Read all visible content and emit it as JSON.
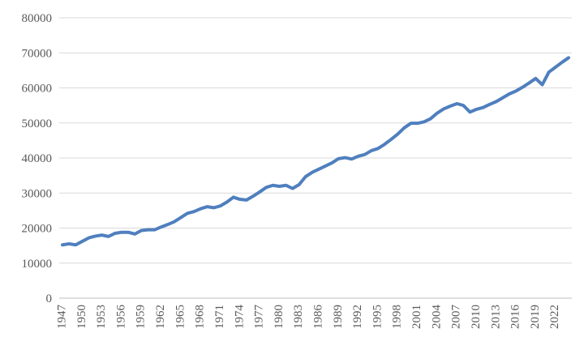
{
  "chart_data": {
    "type": "line",
    "title": "",
    "xlabel": "",
    "ylabel": "",
    "grid": true,
    "legend": "none",
    "ylim": [
      0,
      80000
    ],
    "yticks": [
      0,
      10000,
      20000,
      30000,
      40000,
      50000,
      60000,
      70000,
      80000
    ],
    "ytick_labels": [
      "0",
      "10000",
      "20000",
      "30000",
      "40000",
      "50000",
      "60000",
      "70000",
      "80000"
    ],
    "xtick_labels": [
      "1947",
      "1950",
      "1953",
      "1956",
      "1959",
      "1962",
      "1965",
      "1968",
      "1971",
      "1974",
      "1977",
      "1980",
      "1983",
      "1986",
      "1989",
      "1992",
      "1995",
      "1998",
      "2001",
      "2004",
      "2007",
      "2010",
      "2013",
      "2016",
      "2019",
      "2022"
    ],
    "line_color": "#4f7fbe",
    "x": [
      1947,
      1948,
      1949,
      1950,
      1951,
      1952,
      1953,
      1954,
      1955,
      1956,
      1957,
      1958,
      1959,
      1960,
      1961,
      1962,
      1963,
      1964,
      1965,
      1966,
      1967,
      1968,
      1969,
      1970,
      1971,
      1972,
      1973,
      1974,
      1975,
      1976,
      1977,
      1978,
      1979,
      1980,
      1981,
      1982,
      1983,
      1984,
      1985,
      1986,
      1987,
      1988,
      1989,
      1990,
      1991,
      1992,
      1993,
      1994,
      1995,
      1996,
      1997,
      1998,
      1999,
      2000,
      2001,
      2002,
      2003,
      2004,
      2005,
      2006,
      2007,
      2008,
      2009,
      2010,
      2011,
      2012,
      2013,
      2014,
      2015,
      2016,
      2017,
      2018,
      2019,
      2020,
      2021,
      2022,
      2023,
      2024
    ],
    "series": [
      {
        "values": [
          15200,
          15500,
          15200,
          16200,
          17200,
          17700,
          18000,
          17600,
          18500,
          18800,
          18800,
          18300,
          19300,
          19500,
          19500,
          20300,
          21000,
          21800,
          23000,
          24200,
          24700,
          25500,
          26100,
          25800,
          26300,
          27400,
          28800,
          28200,
          28000,
          29100,
          30300,
          31600,
          32200,
          31900,
          32200,
          31300,
          32400,
          34700,
          35900,
          36800,
          37700,
          38600,
          39800,
          40100,
          39700,
          40500,
          41000,
          42100,
          42700,
          43900,
          45300,
          46800,
          48600,
          49900,
          49900,
          50300,
          51200,
          52800,
          54000,
          54800,
          55500,
          55000,
          53100,
          53900,
          54400,
          55300,
          56100,
          57200,
          58300,
          59100,
          60200,
          61400,
          62700,
          60900,
          64500,
          65900,
          67300,
          68600
        ]
      }
    ]
  }
}
